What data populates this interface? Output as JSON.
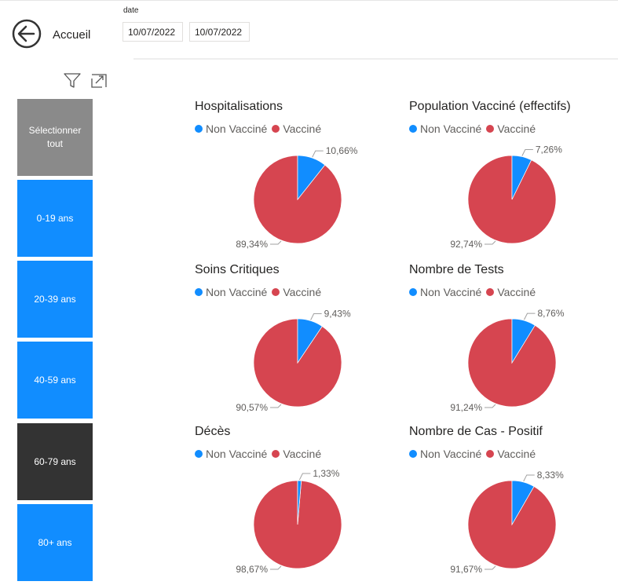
{
  "header": {
    "back_label": "Accueil",
    "date_label": "date",
    "date_from": "10/07/2022",
    "date_to": "10/07/2022"
  },
  "colors": {
    "non_vaccine": "#118dff",
    "vaccine": "#d64550",
    "slicer_default": "#118dff",
    "slicer_all": "#8a8a8a",
    "slicer_selected": "#333333"
  },
  "slicer": {
    "items": [
      {
        "label": "Sélectionner tout",
        "state": "all"
      },
      {
        "label": "0-19 ans",
        "state": "default"
      },
      {
        "label": "20-39 ans",
        "state": "default"
      },
      {
        "label": "40-59 ans",
        "state": "default"
      },
      {
        "label": "60-79 ans",
        "state": "selected"
      },
      {
        "label": "80+ ans",
        "state": "default"
      }
    ]
  },
  "legend": {
    "non_vaccine": "Non Vacciné",
    "vaccine": "Vacciné"
  },
  "chart_data": [
    {
      "type": "pie",
      "title": "Hospitalisations",
      "categories": [
        "Non Vacciné",
        "Vacciné"
      ],
      "values": [
        10.66,
        89.34
      ],
      "labels": [
        "10,66%",
        "89,34%"
      ]
    },
    {
      "type": "pie",
      "title": "Population Vacciné (effectifs)",
      "categories": [
        "Non Vacciné",
        "Vacciné"
      ],
      "values": [
        7.26,
        92.74
      ],
      "labels": [
        "7,26%",
        "92,74%"
      ]
    },
    {
      "type": "pie",
      "title": "Soins Critiques",
      "categories": [
        "Non Vacciné",
        "Vacciné"
      ],
      "values": [
        9.43,
        90.57
      ],
      "labels": [
        "9,43%",
        "90,57%"
      ]
    },
    {
      "type": "pie",
      "title": "Nombre de Tests",
      "categories": [
        "Non Vacciné",
        "Vacciné"
      ],
      "values": [
        8.76,
        91.24
      ],
      "labels": [
        "8,76%",
        "91,24%"
      ]
    },
    {
      "type": "pie",
      "title": "Décès",
      "categories": [
        "Non Vacciné",
        "Vacciné"
      ],
      "values": [
        1.33,
        98.67
      ],
      "labels": [
        "1,33%",
        "98,67%"
      ]
    },
    {
      "type": "pie",
      "title": "Nombre de Cas - Positif",
      "categories": [
        "Non Vacciné",
        "Vacciné"
      ],
      "values": [
        8.33,
        91.67
      ],
      "labels": [
        "8,33%",
        "91,67%"
      ]
    }
  ]
}
